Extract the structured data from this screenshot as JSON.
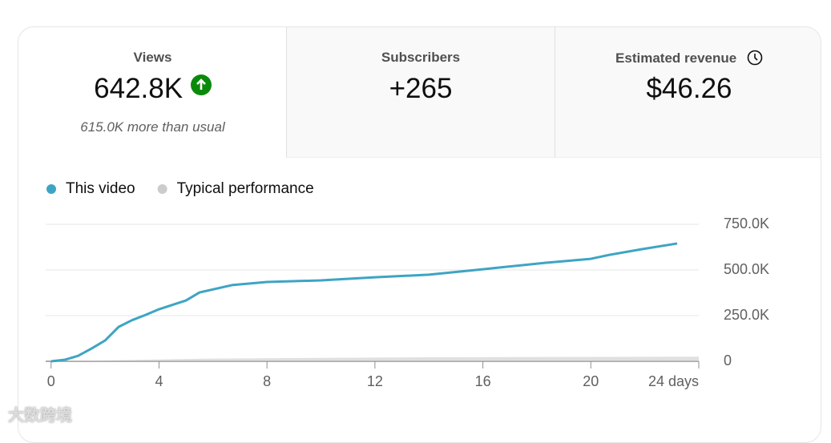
{
  "cards": [
    {
      "title": "Views",
      "value": "642.8K",
      "note": "615.0K more than usual"
    },
    {
      "title": "Subscribers",
      "value": "+265"
    },
    {
      "title": "Estimated revenue",
      "value": "$46.26"
    }
  ],
  "watermark": "大数跨境",
  "chart_data": {
    "type": "line",
    "series": [
      {
        "name": "This video",
        "color": "#3ea4c4",
        "x": [
          0,
          0.5,
          1,
          1.5,
          2,
          2.5,
          3,
          3.5,
          4,
          5,
          5.5,
          6.7,
          8,
          10,
          12,
          14,
          16,
          18.3,
          20,
          20.7,
          21.9,
          23.2
        ],
        "values": [
          0,
          8000,
          30000,
          70000,
          114000,
          188000,
          225000,
          254000,
          285000,
          333000,
          377000,
          417000,
          434000,
          443000,
          460000,
          474000,
          504000,
          539000,
          561000,
          583000,
          614000,
          645000
        ]
      },
      {
        "name": "Typical performance",
        "color": "#cccccc",
        "x": [
          0,
          2,
          6,
          14,
          24
        ],
        "values": [
          0,
          5000,
          15000,
          22000,
          25000
        ]
      }
    ],
    "xlim": [
      -0.2,
      24
    ],
    "xticks": [
      0,
      4,
      8,
      12,
      16,
      20,
      {
        "value": 24,
        "label": "24 days"
      }
    ],
    "ylim": [
      0,
      750000
    ],
    "yticks": [
      0,
      {
        "value": 250000,
        "label": "250.0K"
      },
      {
        "value": 500000,
        "label": "500.0K"
      },
      {
        "value": 750000,
        "label": "750.0K"
      }
    ],
    "grid": true
  }
}
